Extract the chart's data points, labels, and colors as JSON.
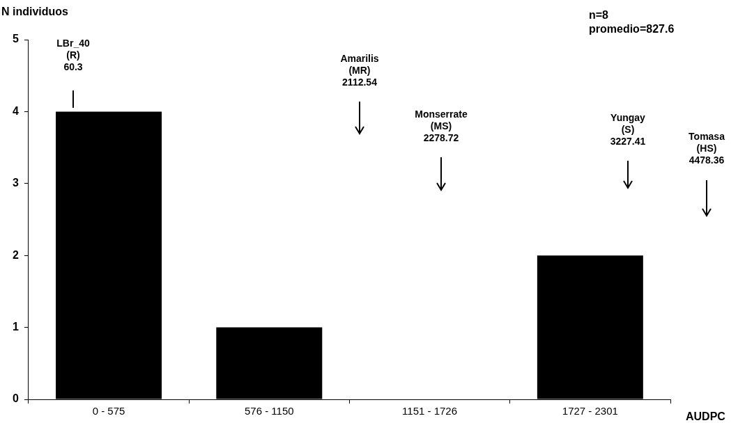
{
  "chart_data": {
    "type": "bar",
    "ylabel": "N individuos",
    "xlabel": "AUDPC",
    "categories": [
      "0 - 575",
      "576 - 1150",
      "1151 - 1726",
      "1727 - 2301"
    ],
    "values": [
      4,
      1,
      0,
      2
    ],
    "color": "#000000",
    "ylim": [
      0,
      5
    ],
    "yticks": [
      0,
      1,
      2,
      3,
      4,
      5
    ],
    "grid": false,
    "legend": false,
    "annotations": [
      "LBr_40\n(R)\n60.3",
      "Amarilis\n(MR)\n2112.54",
      "Monserrate\n(MS)\n2278.72",
      "Yungay\n(S)\n3227.41",
      "Tomasa\n(HS)\n4478.36",
      "n=8\npromedio=827.6"
    ]
  }
}
